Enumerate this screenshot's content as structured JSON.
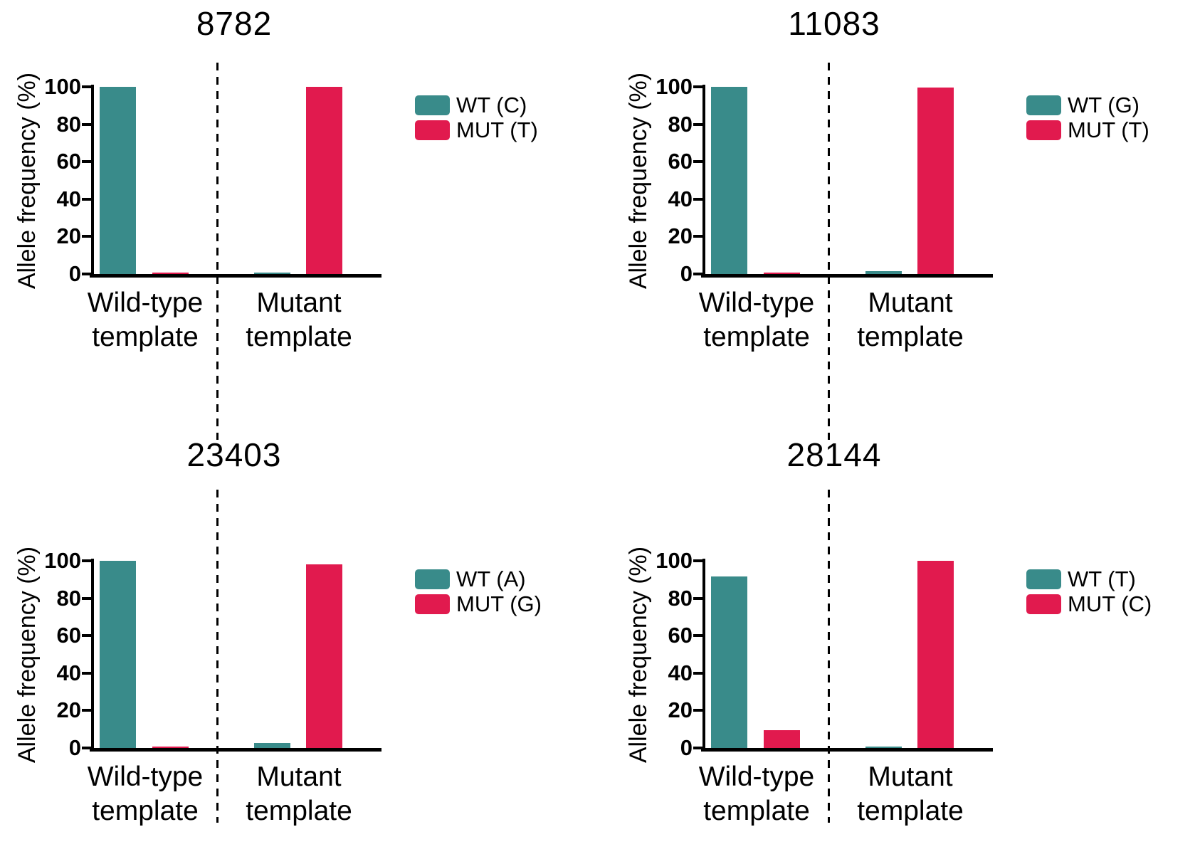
{
  "figure": {
    "description": "Four bar charts of allele frequency by template type at four genome positions",
    "axis_color": "#000000",
    "background": "#ffffff",
    "wt_color": "#398B8A",
    "mut_color": "#E11A4E"
  },
  "chart_data": [
    {
      "type": "bar",
      "title": "8782",
      "ylabel": "Allele frequency (%)",
      "ylim": [
        0,
        100
      ],
      "yticks": [
        "0",
        "20",
        "40",
        "60",
        "80",
        "100"
      ],
      "grid": false,
      "legend_position": "right",
      "separator": "vertical dashed line between category groups",
      "categories": [
        "Wild-type template",
        "Mutant template"
      ],
      "categories_lines": [
        [
          "Wild-type",
          "template"
        ],
        [
          "Mutant",
          "template"
        ]
      ],
      "series": [
        {
          "name": "WT (C)",
          "color": "#398B8A",
          "values": [
            100,
            0.5
          ]
        },
        {
          "name": "MUT (T)",
          "color": "#E11A4E",
          "values": [
            0.5,
            100
          ]
        }
      ]
    },
    {
      "type": "bar",
      "title": "11083",
      "ylabel": "Allele frequency (%)",
      "ylim": [
        0,
        100
      ],
      "yticks": [
        "0",
        "20",
        "40",
        "60",
        "80",
        "100"
      ],
      "grid": false,
      "legend_position": "right",
      "separator": "vertical dashed line between category groups",
      "categories": [
        "Wild-type template",
        "Mutant template"
      ],
      "categories_lines": [
        [
          "Wild-type",
          "template"
        ],
        [
          "Mutant",
          "template"
        ]
      ],
      "series": [
        {
          "name": "WT (G)",
          "color": "#398B8A",
          "values": [
            100,
            1.5
          ]
        },
        {
          "name": "MUT (T)",
          "color": "#E11A4E",
          "values": [
            0.3,
            99.5
          ]
        }
      ]
    },
    {
      "type": "bar",
      "title": "23403",
      "ylabel": "Allele frequency (%)",
      "ylim": [
        0,
        100
      ],
      "yticks": [
        "0",
        "20",
        "40",
        "60",
        "80",
        "100"
      ],
      "grid": false,
      "legend_position": "right",
      "separator": "vertical dashed line between category groups",
      "categories": [
        "Wild-type template",
        "Mutant template"
      ],
      "categories_lines": [
        [
          "Wild-type",
          "template"
        ],
        [
          "Mutant",
          "template"
        ]
      ],
      "series": [
        {
          "name": "WT (A)",
          "color": "#398B8A",
          "values": [
            100,
            2.8
          ]
        },
        {
          "name": "MUT (G)",
          "color": "#E11A4E",
          "values": [
            0.4,
            98
          ]
        }
      ]
    },
    {
      "type": "bar",
      "title": "28144",
      "ylabel": "Allele frequency (%)",
      "ylim": [
        0,
        100
      ],
      "yticks": [
        "0",
        "20",
        "40",
        "60",
        "80",
        "100"
      ],
      "grid": false,
      "legend_position": "right",
      "separator": "vertical dashed line between category groups",
      "categories": [
        "Wild-type template",
        "Mutant template"
      ],
      "categories_lines": [
        [
          "Wild-type",
          "template"
        ],
        [
          "Mutant",
          "template"
        ]
      ],
      "series": [
        {
          "name": "WT (T)",
          "color": "#398B8A",
          "values": [
            91.5,
            0.7
          ]
        },
        {
          "name": "MUT (C)",
          "color": "#E11A4E",
          "values": [
            9.5,
            100
          ]
        }
      ]
    }
  ]
}
